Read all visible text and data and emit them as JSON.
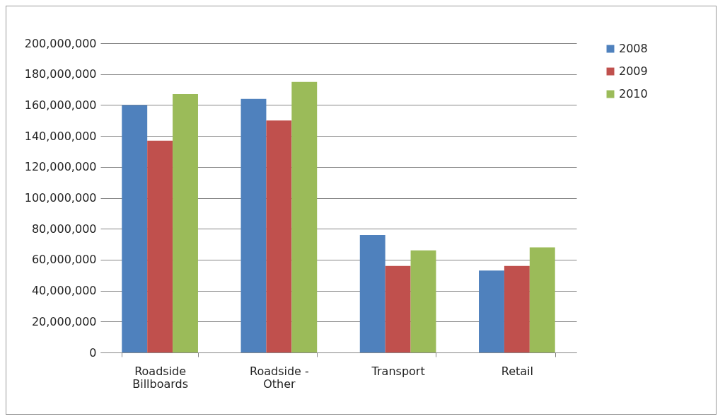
{
  "chart_data": {
    "type": "bar",
    "categories": [
      "Roadside Billboards",
      "Roadside - Other",
      "Transport",
      "Retail"
    ],
    "series": [
      {
        "name": "2008",
        "color": "#4f81bd",
        "values": [
          160000000,
          164000000,
          76000000,
          53000000
        ]
      },
      {
        "name": "2009",
        "color": "#c0504d",
        "values": [
          137000000,
          150000000,
          56000000,
          56000000
        ]
      },
      {
        "name": "2010",
        "color": "#9bbb59",
        "values": [
          167000000,
          175000000,
          66000000,
          68000000
        ]
      }
    ],
    "ylim": [
      0,
      200000000
    ],
    "yticks": [
      0,
      {
        "value": 20000000,
        "label": "20,000,000"
      },
      {
        "value": 40000000,
        "label": "40,000,000"
      },
      {
        "value": 60000000,
        "label": "60,000,000"
      },
      {
        "value": 80000000,
        "label": "80,000,000"
      },
      {
        "value": 100000000,
        "label": "100,000,000"
      },
      {
        "value": 120000000,
        "label": "120,000,000"
      },
      {
        "value": 140000000,
        "label": "140,000,000"
      },
      {
        "value": 160000000,
        "label": "160,000,000"
      },
      {
        "value": 180000000,
        "label": "180,000,000"
      },
      {
        "value": 200000000,
        "label": "200,000,000"
      }
    ],
    "grid": "y",
    "legend": "right"
  }
}
